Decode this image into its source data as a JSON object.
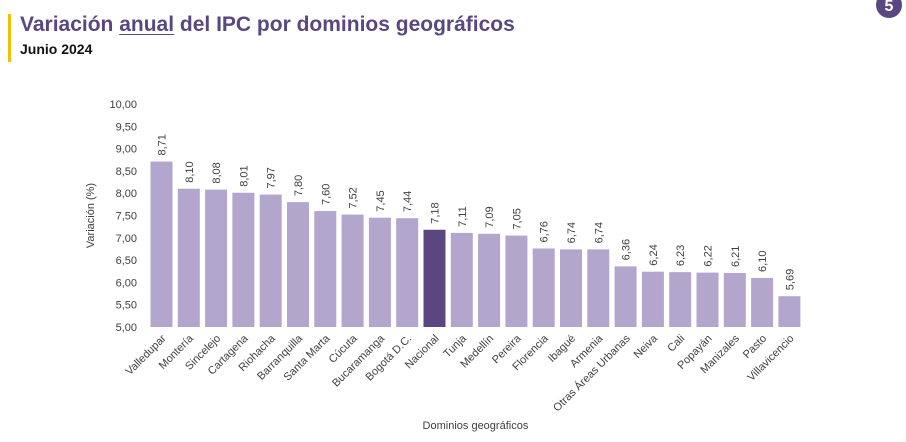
{
  "header": {
    "title_before": "Variación ",
    "title_underlined": "anual",
    "title_after": " del IPC por dominios geográficos",
    "subtitle": "Junio 2024",
    "logo_letter": "5"
  },
  "colors": {
    "bar": "#b3a6cc",
    "highlight_bar": "#5a4780",
    "title": "#5a4780",
    "accent": "#f2c200"
  },
  "chart_data": {
    "type": "bar",
    "xlabel": "Dominios geográficos",
    "ylabel": "Variación (%)",
    "ylim": [
      5,
      10
    ],
    "yticks": [
      "5,00",
      "5,50",
      "6,00",
      "6,50",
      "7,00",
      "7,50",
      "8,00",
      "8,50",
      "9,00",
      "9,50",
      "10,00"
    ],
    "grid": false,
    "highlight_category": "Nacional",
    "categories": [
      "Valledupar",
      "Montería",
      "Sincelejo",
      "Cartagena",
      "Riohacha",
      "Barranquilla",
      "Santa Marta",
      "Cúcuta",
      "Bucaramanga",
      "Bogotá D.C.",
      "Nacional",
      "Tunja",
      "Medellín",
      "Pereira",
      "Florencia",
      "Ibagué",
      "Armenia",
      "Otras Áreas Urbanas",
      "Neiva",
      "Cali",
      "Popayán",
      "Manizales",
      "Pasto",
      "Villavicencio"
    ],
    "values": [
      8.71,
      8.1,
      8.08,
      8.01,
      7.97,
      7.8,
      7.6,
      7.52,
      7.45,
      7.44,
      7.18,
      7.11,
      7.09,
      7.05,
      6.76,
      6.74,
      6.74,
      6.36,
      6.24,
      6.23,
      6.22,
      6.21,
      6.1,
      5.69
    ],
    "value_labels": [
      "8,71",
      "8,10",
      "8,08",
      "8,01",
      "7,97",
      "7,80",
      "7,60",
      "7,52",
      "7,45",
      "7,44",
      "7,18",
      "7,11",
      "7,09",
      "7,05",
      "6,76",
      "6,74",
      "6,74",
      "6,36",
      "6,24",
      "6,23",
      "6,22",
      "6,21",
      "6,10",
      "5,69"
    ]
  }
}
